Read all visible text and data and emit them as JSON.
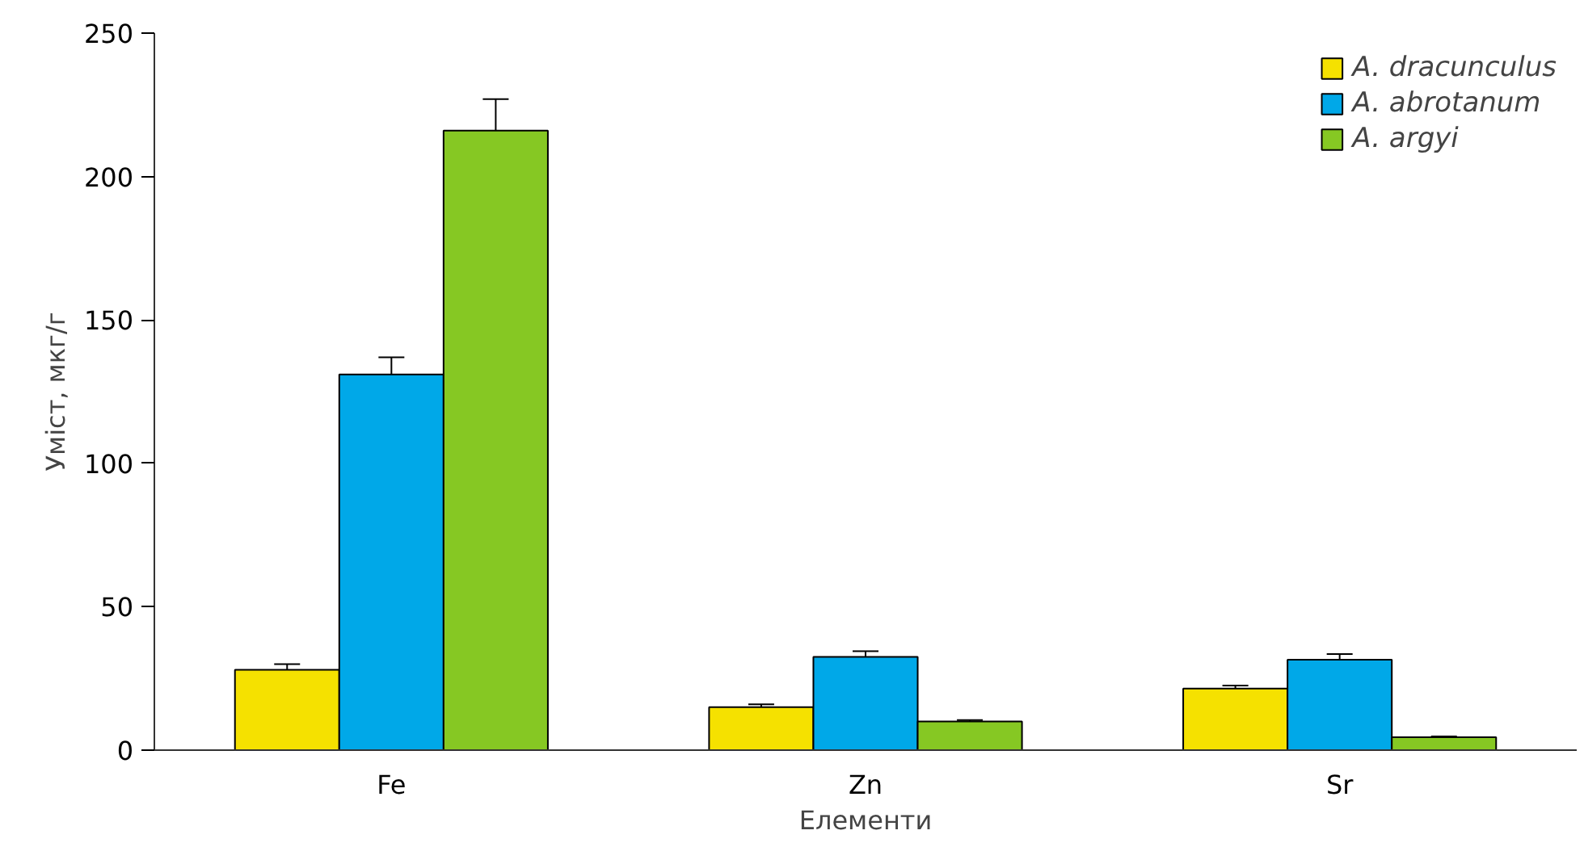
{
  "chart_data": {
    "type": "bar",
    "xlabel": "Елементи",
    "ylabel": "Уміст, мкг/г",
    "categories": [
      "Fe",
      "Zn",
      "Sr"
    ],
    "series": [
      {
        "name": "A. dracunculus",
        "color": "#f5e100",
        "values": [
          28,
          15,
          21.5
        ],
        "errors": [
          2,
          1,
          1
        ]
      },
      {
        "name": "A. abrotanum",
        "color": "#00a8e8",
        "values": [
          131,
          32.5,
          31.5
        ],
        "errors": [
          6,
          2,
          2
        ]
      },
      {
        "name": "A. argyi",
        "color": "#86c823",
        "values": [
          216,
          10,
          4.5
        ],
        "errors": [
          11,
          0.5,
          0.3
        ]
      }
    ],
    "ylim": [
      0,
      250
    ],
    "yticks": [
      0,
      50,
      100,
      150,
      200,
      250
    ],
    "grid": false,
    "legend": "top right"
  }
}
